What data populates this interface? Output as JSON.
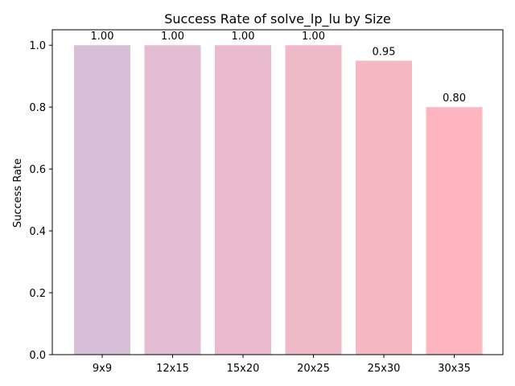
{
  "chart_data": {
    "type": "bar",
    "title": "Success Rate of solve_lp_lu by Size",
    "xlabel": "",
    "ylabel": "Success Rate",
    "categories": [
      "9x9",
      "12x15",
      "15x20",
      "20x25",
      "25x30",
      "30x35"
    ],
    "values": [
      1.0,
      1.0,
      1.0,
      1.0,
      0.95,
      0.8
    ],
    "data_labels": [
      "1.00",
      "1.00",
      "1.00",
      "1.00",
      "0.95",
      "0.80"
    ],
    "colors": [
      "#d8bfd8",
      "#e2bdd3",
      "#e9bbcd",
      "#efbac8",
      "#f5b8c2",
      "#ffb6c1"
    ],
    "ylim": [
      0,
      1.05
    ],
    "yticks": [
      0.0,
      0.2,
      0.4,
      0.6,
      0.8,
      1.0
    ],
    "ytick_labels": [
      "0.0",
      "0.2",
      "0.4",
      "0.6",
      "0.8",
      "1.0"
    ],
    "grid": false,
    "legend": "none"
  }
}
